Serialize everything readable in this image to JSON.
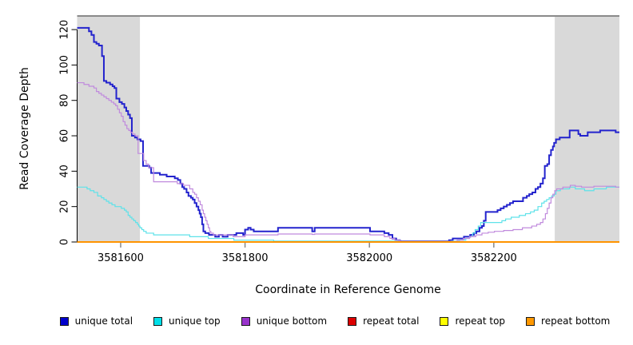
{
  "chart_data": {
    "type": "line",
    "step": true,
    "title": "",
    "xlabel": "Coordinate in Reference Genome",
    "ylabel": "Read Coverage Depth",
    "xlim": [
      3581530,
      3582402
    ],
    "ylim": [
      0,
      127.7
    ],
    "x_ticks": [
      3581600,
      3581800,
      3582000,
      3582200
    ],
    "y_ticks": [
      0,
      20,
      40,
      60,
      80,
      100,
      120
    ],
    "grid": false,
    "legend_position": "bottom",
    "plot_border_top_color": "#8a8a8a",
    "shaded_regions": [
      {
        "name": "shaded-region-left",
        "x0": 3581530,
        "x1": 3581631,
        "color": "#d9d9d9"
      },
      {
        "name": "shaded-region-right",
        "x0": 3582298,
        "x1": 3582402,
        "color": "#d9d9d9"
      }
    ],
    "series": [
      {
        "name": "unique total",
        "color": "#2323cd",
        "legend_color": "#0000cc",
        "width": 2,
        "points": [
          [
            3581530,
            121
          ],
          [
            3581549,
            119
          ],
          [
            3581553,
            117
          ],
          [
            3581557,
            113
          ],
          [
            3581561,
            112
          ],
          [
            3581565,
            111
          ],
          [
            3581570,
            105
          ],
          [
            3581573,
            91
          ],
          [
            3581577,
            90
          ],
          [
            3581583,
            89
          ],
          [
            3581587,
            88
          ],
          [
            3581590,
            87
          ],
          [
            3581593,
            81
          ],
          [
            3581598,
            79
          ],
          [
            3581602,
            78
          ],
          [
            3581606,
            76
          ],
          [
            3581609,
            74
          ],
          [
            3581612,
            72
          ],
          [
            3581615,
            70
          ],
          [
            3581618,
            60
          ],
          [
            3581623,
            59
          ],
          [
            3581627,
            58
          ],
          [
            3581632,
            57
          ],
          [
            3581636,
            43
          ],
          [
            3581646,
            42
          ],
          [
            3581649,
            39
          ],
          [
            3581663,
            38
          ],
          [
            3581674,
            37
          ],
          [
            3581687,
            36
          ],
          [
            3581692,
            35
          ],
          [
            3581696,
            33
          ],
          [
            3581699,
            31
          ],
          [
            3581702,
            30
          ],
          [
            3581706,
            28
          ],
          [
            3581709,
            26
          ],
          [
            3581713,
            25
          ],
          [
            3581716,
            24
          ],
          [
            3581719,
            22
          ],
          [
            3581722,
            20
          ],
          [
            3581725,
            18
          ],
          [
            3581727,
            16
          ],
          [
            3581729,
            14
          ],
          [
            3581731,
            10
          ],
          [
            3581733,
            6
          ],
          [
            3581736,
            5
          ],
          [
            3581742,
            4
          ],
          [
            3581752,
            3
          ],
          [
            3581758,
            4
          ],
          [
            3581764,
            3
          ],
          [
            3581772,
            4
          ],
          [
            3581786,
            5
          ],
          [
            3581797,
            4
          ],
          [
            3581800,
            7
          ],
          [
            3581805,
            8
          ],
          [
            3581809,
            7
          ],
          [
            3581814,
            6
          ],
          [
            3581853,
            8
          ],
          [
            3581908,
            6
          ],
          [
            3581912,
            8
          ],
          [
            3582001,
            6
          ],
          [
            3582024,
            5
          ],
          [
            3582031,
            4
          ],
          [
            3582037,
            2
          ],
          [
            3582043,
            1
          ],
          [
            3582049,
            0.4
          ],
          [
            3582128,
            1
          ],
          [
            3582134,
            2
          ],
          [
            3582152,
            3
          ],
          [
            3582162,
            4
          ],
          [
            3582168,
            5
          ],
          [
            3582172,
            6
          ],
          [
            3582177,
            8
          ],
          [
            3582181,
            9
          ],
          [
            3582184,
            12
          ],
          [
            3582187,
            17
          ],
          [
            3582206,
            18
          ],
          [
            3582211,
            19
          ],
          [
            3582216,
            20
          ],
          [
            3582221,
            21
          ],
          [
            3582226,
            22
          ],
          [
            3582231,
            23
          ],
          [
            3582247,
            25
          ],
          [
            3582253,
            26
          ],
          [
            3582257,
            27
          ],
          [
            3582262,
            28
          ],
          [
            3582267,
            30
          ],
          [
            3582271,
            31
          ],
          [
            3582275,
            33
          ],
          [
            3582279,
            36
          ],
          [
            3582282,
            43
          ],
          [
            3582286,
            44
          ],
          [
            3582289,
            49
          ],
          [
            3582292,
            52
          ],
          [
            3582295,
            54
          ],
          [
            3582297,
            56
          ],
          [
            3582300,
            58
          ],
          [
            3582306,
            59
          ],
          [
            3582322,
            63
          ],
          [
            3582336,
            61
          ],
          [
            3582339,
            60
          ],
          [
            3582351,
            62
          ],
          [
            3582371,
            63
          ],
          [
            3582396,
            62
          ]
        ]
      },
      {
        "name": "unique top",
        "color": "#5ee2e9",
        "legend_color": "#00dfe8",
        "width": 1.2,
        "points": [
          [
            3581530,
            31
          ],
          [
            3581546,
            30
          ],
          [
            3581551,
            29
          ],
          [
            3581557,
            28
          ],
          [
            3581563,
            26
          ],
          [
            3581569,
            25
          ],
          [
            3581573,
            24
          ],
          [
            3581577,
            23
          ],
          [
            3581581,
            22
          ],
          [
            3581586,
            21
          ],
          [
            3581591,
            20
          ],
          [
            3581601,
            19
          ],
          [
            3581606,
            18
          ],
          [
            3581609,
            17
          ],
          [
            3581612,
            15
          ],
          [
            3581615,
            14
          ],
          [
            3581618,
            13
          ],
          [
            3581621,
            12
          ],
          [
            3581624,
            11
          ],
          [
            3581627,
            10
          ],
          [
            3581629,
            9
          ],
          [
            3581631,
            8
          ],
          [
            3581634,
            7
          ],
          [
            3581637,
            6
          ],
          [
            3581641,
            5
          ],
          [
            3581653,
            4
          ],
          [
            3581711,
            3
          ],
          [
            3581741,
            2
          ],
          [
            3581782,
            1
          ],
          [
            3581846,
            0.5
          ],
          [
            3582045,
            0.3
          ],
          [
            3582132,
            0.5
          ],
          [
            3582145,
            1
          ],
          [
            3582155,
            2
          ],
          [
            3582161,
            3
          ],
          [
            3582166,
            5
          ],
          [
            3582170,
            7
          ],
          [
            3582175,
            9
          ],
          [
            3582179,
            11
          ],
          [
            3582213,
            12
          ],
          [
            3582219,
            13
          ],
          [
            3582228,
            14
          ],
          [
            3582241,
            15
          ],
          [
            3582251,
            16
          ],
          [
            3582259,
            17
          ],
          [
            3582265,
            18
          ],
          [
            3582271,
            20
          ],
          [
            3582277,
            22
          ],
          [
            3582281,
            23
          ],
          [
            3582285,
            24
          ],
          [
            3582289,
            25
          ],
          [
            3582293,
            26
          ],
          [
            3582297,
            27
          ],
          [
            3582300,
            29
          ],
          [
            3582307,
            30
          ],
          [
            3582322,
            31
          ],
          [
            3582331,
            30
          ],
          [
            3582346,
            29
          ],
          [
            3582361,
            30
          ],
          [
            3582381,
            31
          ]
        ]
      },
      {
        "name": "unique bottom",
        "color": "#c08add",
        "legend_color": "#9933cc",
        "width": 1.2,
        "points": [
          [
            3581530,
            90
          ],
          [
            3581541,
            89
          ],
          [
            3581549,
            88
          ],
          [
            3581557,
            87
          ],
          [
            3581561,
            85
          ],
          [
            3581565,
            84
          ],
          [
            3581569,
            83
          ],
          [
            3581573,
            82
          ],
          [
            3581577,
            81
          ],
          [
            3581581,
            80
          ],
          [
            3581585,
            79
          ],
          [
            3581589,
            78
          ],
          [
            3581592,
            77
          ],
          [
            3581595,
            75
          ],
          [
            3581598,
            73
          ],
          [
            3581601,
            71
          ],
          [
            3581604,
            68
          ],
          [
            3581607,
            66
          ],
          [
            3581610,
            64
          ],
          [
            3581613,
            63
          ],
          [
            3581616,
            62
          ],
          [
            3581619,
            61
          ],
          [
            3581623,
            60
          ],
          [
            3581628,
            50
          ],
          [
            3581637,
            46
          ],
          [
            3581641,
            44
          ],
          [
            3581645,
            42
          ],
          [
            3581653,
            34
          ],
          [
            3581691,
            33
          ],
          [
            3581701,
            32
          ],
          [
            3581711,
            30
          ],
          [
            3581716,
            28
          ],
          [
            3581719,
            27
          ],
          [
            3581722,
            25
          ],
          [
            3581725,
            23
          ],
          [
            3581728,
            21
          ],
          [
            3581731,
            18
          ],
          [
            3581733,
            16
          ],
          [
            3581735,
            14
          ],
          [
            3581737,
            12
          ],
          [
            3581739,
            10
          ],
          [
            3581741,
            8
          ],
          [
            3581743,
            6
          ],
          [
            3581745,
            5
          ],
          [
            3581749,
            4
          ],
          [
            3581781,
            3
          ],
          [
            3581800,
            4
          ],
          [
            3581853,
            4.5
          ],
          [
            3581908,
            4.3
          ],
          [
            3581912,
            4.5
          ],
          [
            3582001,
            4
          ],
          [
            3582024,
            3
          ],
          [
            3582033,
            2
          ],
          [
            3582041,
            1
          ],
          [
            3582049,
            0.3
          ],
          [
            3582141,
            1
          ],
          [
            3582151,
            2
          ],
          [
            3582161,
            3
          ],
          [
            3582171,
            4
          ],
          [
            3582181,
            5
          ],
          [
            3582191,
            5.5
          ],
          [
            3582201,
            6
          ],
          [
            3582216,
            6.5
          ],
          [
            3582231,
            7
          ],
          [
            3582246,
            8
          ],
          [
            3582261,
            9
          ],
          [
            3582269,
            10
          ],
          [
            3582275,
            11
          ],
          [
            3582279,
            13
          ],
          [
            3582283,
            16
          ],
          [
            3582286,
            19
          ],
          [
            3582289,
            22
          ],
          [
            3582292,
            25
          ],
          [
            3582295,
            27
          ],
          [
            3582298,
            29
          ],
          [
            3582301,
            30
          ],
          [
            3582311,
            31
          ],
          [
            3582323,
            32
          ],
          [
            3582331,
            31.5
          ],
          [
            3582341,
            31
          ],
          [
            3582361,
            31.5
          ],
          [
            3582396,
            31
          ]
        ]
      },
      {
        "name": "repeat total",
        "color": "#dd0000",
        "legend_color": "#dd0000",
        "width": 1.2,
        "points": [
          [
            3581530,
            0
          ],
          [
            3582402,
            0
          ]
        ]
      },
      {
        "name": "repeat top",
        "color": "#ffff00",
        "legend_color": "#ffff00",
        "width": 1.2,
        "points": [
          [
            3581530,
            0
          ],
          [
            3582402,
            0
          ]
        ]
      },
      {
        "name": "repeat bottom",
        "color": "#ff9400",
        "legend_color": "#ff9800",
        "width": 2,
        "points": [
          [
            3581530,
            0
          ],
          [
            3582402,
            0
          ]
        ]
      }
    ]
  }
}
